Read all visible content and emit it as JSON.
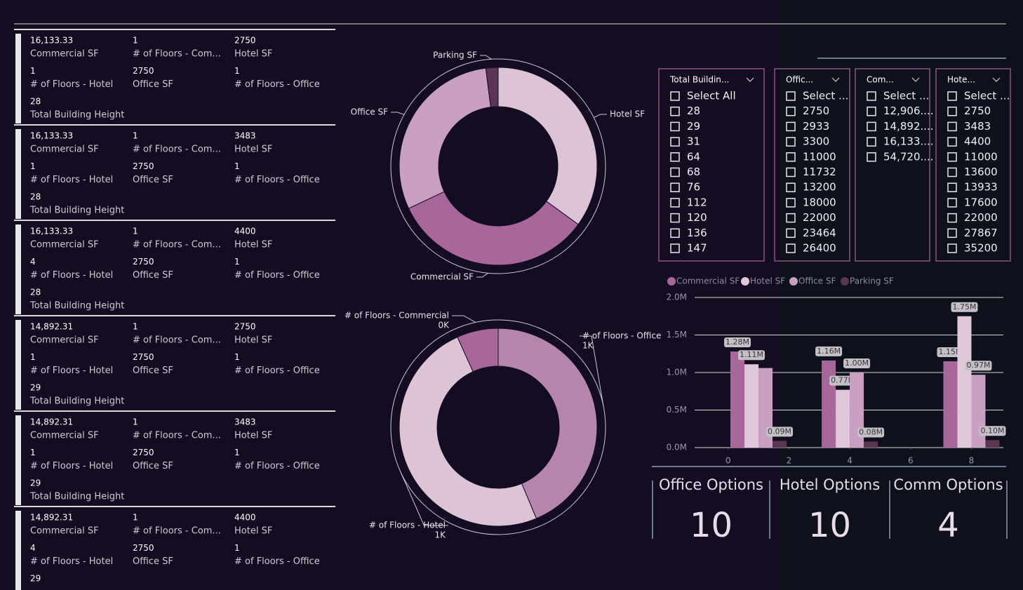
{
  "cards": [
    {
      "fields": [
        {
          "value": "16,133.33",
          "label": "Commercial SF"
        },
        {
          "value": "1",
          "label": "# of Floors - Com..."
        },
        {
          "value": "2750",
          "label": "Hotel SF"
        },
        {
          "value": "1",
          "label": "# of Floors - Hotel"
        },
        {
          "value": "2750",
          "label": "Office SF"
        },
        {
          "value": "1",
          "label": "# of Floors - Office"
        },
        {
          "value": "28",
          "label": "Total Building Height"
        }
      ]
    },
    {
      "fields": [
        {
          "value": "16,133.33",
          "label": "Commercial SF"
        },
        {
          "value": "1",
          "label": "# of Floors - Com..."
        },
        {
          "value": "3483",
          "label": "Hotel SF"
        },
        {
          "value": "1",
          "label": "# of Floors - Hotel"
        },
        {
          "value": "2750",
          "label": "Office SF"
        },
        {
          "value": "1",
          "label": "# of Floors - Office"
        },
        {
          "value": "28",
          "label": "Total Building Height"
        }
      ]
    },
    {
      "fields": [
        {
          "value": "16,133.33",
          "label": "Commercial SF"
        },
        {
          "value": "1",
          "label": "# of Floors - Com..."
        },
        {
          "value": "4400",
          "label": "Hotel SF"
        },
        {
          "value": "4",
          "label": "# of Floors - Hotel"
        },
        {
          "value": "2750",
          "label": "Office SF"
        },
        {
          "value": "1",
          "label": "# of Floors - Office"
        },
        {
          "value": "28",
          "label": "Total Building Height"
        }
      ]
    },
    {
      "fields": [
        {
          "value": "14,892.31",
          "label": "Commercial SF"
        },
        {
          "value": "1",
          "label": "# of Floors - Com..."
        },
        {
          "value": "2750",
          "label": "Hotel SF"
        },
        {
          "value": "1",
          "label": "# of Floors - Hotel"
        },
        {
          "value": "2750",
          "label": "Office SF"
        },
        {
          "value": "1",
          "label": "# of Floors - Office"
        },
        {
          "value": "29",
          "label": "Total Building Height"
        }
      ]
    },
    {
      "fields": [
        {
          "value": "14,892.31",
          "label": "Commercial SF"
        },
        {
          "value": "1",
          "label": "# of Floors - Com..."
        },
        {
          "value": "3483",
          "label": "Hotel SF"
        },
        {
          "value": "1",
          "label": "# of Floors - Hotel"
        },
        {
          "value": "2750",
          "label": "Office SF"
        },
        {
          "value": "1",
          "label": "# of Floors - Office"
        },
        {
          "value": "29",
          "label": "Total Building Height"
        }
      ]
    },
    {
      "fields": [
        {
          "value": "14,892.31",
          "label": "Commercial SF"
        },
        {
          "value": "1",
          "label": "# of Floors - Com..."
        },
        {
          "value": "4400",
          "label": "Hotel SF"
        },
        {
          "value": "4",
          "label": "# of Floors - Hotel"
        },
        {
          "value": "2750",
          "label": "Office SF"
        },
        {
          "value": "1",
          "label": "# of Floors - Office"
        },
        {
          "value": "29"
        }
      ]
    }
  ],
  "chart_data": [
    {
      "type": "pie",
      "categories": [
        "Hotel SF",
        "Commercial SF",
        "Office SF",
        "Parking SF"
      ],
      "values": [
        35,
        33,
        30,
        2
      ],
      "colors": [
        "#dcc3d6",
        "#a8679a",
        "#c9a0c2",
        "#5c3552"
      ]
    },
    {
      "type": "pie",
      "categories": [
        "# of Floors - Office",
        "# of Floors - Hotel",
        "# of Floors - Commercial"
      ],
      "values": [
        970,
        1100,
        150
      ],
      "value_labels": [
        "1K",
        "1K",
        "0K"
      ],
      "colors": [
        "#b585ae",
        "#dcc3d6",
        "#a8679a"
      ]
    },
    {
      "type": "bar",
      "x": [
        1,
        4,
        8
      ],
      "series": [
        {
          "name": "Commercial SF",
          "color": "#a8679a",
          "values": [
            1280000,
            1160000,
            1150000
          ],
          "value_labels": [
            "1.28M",
            "1.16M",
            "1.15M"
          ]
        },
        {
          "name": "Hotel SF",
          "color": "#e0c8da",
          "values": [
            1110000,
            770000,
            1750000
          ],
          "value_labels": [
            "1.11M",
            "0.77M",
            "1.75M"
          ]
        },
        {
          "name": "Office SF",
          "color": "#c9a0c2",
          "values": [
            1060000,
            1000000,
            970000
          ],
          "value_labels": [
            null,
            "1.00M",
            "0.97M"
          ]
        },
        {
          "name": "Parking SF",
          "color": "#5c3552",
          "values": [
            90000,
            80000,
            100000
          ],
          "value_labels": [
            "0.09M",
            "0.08M",
            "0.10M"
          ]
        }
      ],
      "xlim": [
        -1.1,
        9.05
      ],
      "xticks": [
        0,
        2,
        4,
        6,
        8
      ],
      "ylim": [
        0,
        2000000
      ],
      "yticks": [
        {
          "value": 0,
          "label": "0.0M"
        },
        {
          "value": 500000,
          "label": "0.5M"
        },
        {
          "value": 1000000,
          "label": "1.0M"
        },
        {
          "value": 1500000,
          "label": "1.5M"
        },
        {
          "value": 2000000,
          "label": "2.0M"
        }
      ],
      "grid": true,
      "legend": "top-left"
    }
  ],
  "slicers": [
    {
      "header": "Total Buildin...",
      "items": [
        "Select All",
        "28",
        "29",
        "31",
        "64",
        "68",
        "76",
        "112",
        "120",
        "136",
        "147"
      ]
    },
    {
      "header": "Offic...",
      "items": [
        "Select ...",
        "2750",
        "2933",
        "3300",
        "11000",
        "11732",
        "13200",
        "18000",
        "22000",
        "23464",
        "26400"
      ]
    },
    {
      "header": "Com...",
      "items": [
        "Select ...",
        "12,906....",
        "14,892....",
        "16,133....",
        "54,720...."
      ]
    },
    {
      "header": "Hote...",
      "items": [
        "Select ...",
        "2750",
        "3483",
        "4400",
        "11000",
        "13600",
        "13933",
        "17600",
        "22000",
        "27867",
        "35200"
      ]
    }
  ],
  "kpis": [
    {
      "title": "Office Options",
      "value": "10"
    },
    {
      "title": "Hotel Options",
      "value": "10"
    },
    {
      "title": "Comm Options",
      "value": "4"
    }
  ]
}
